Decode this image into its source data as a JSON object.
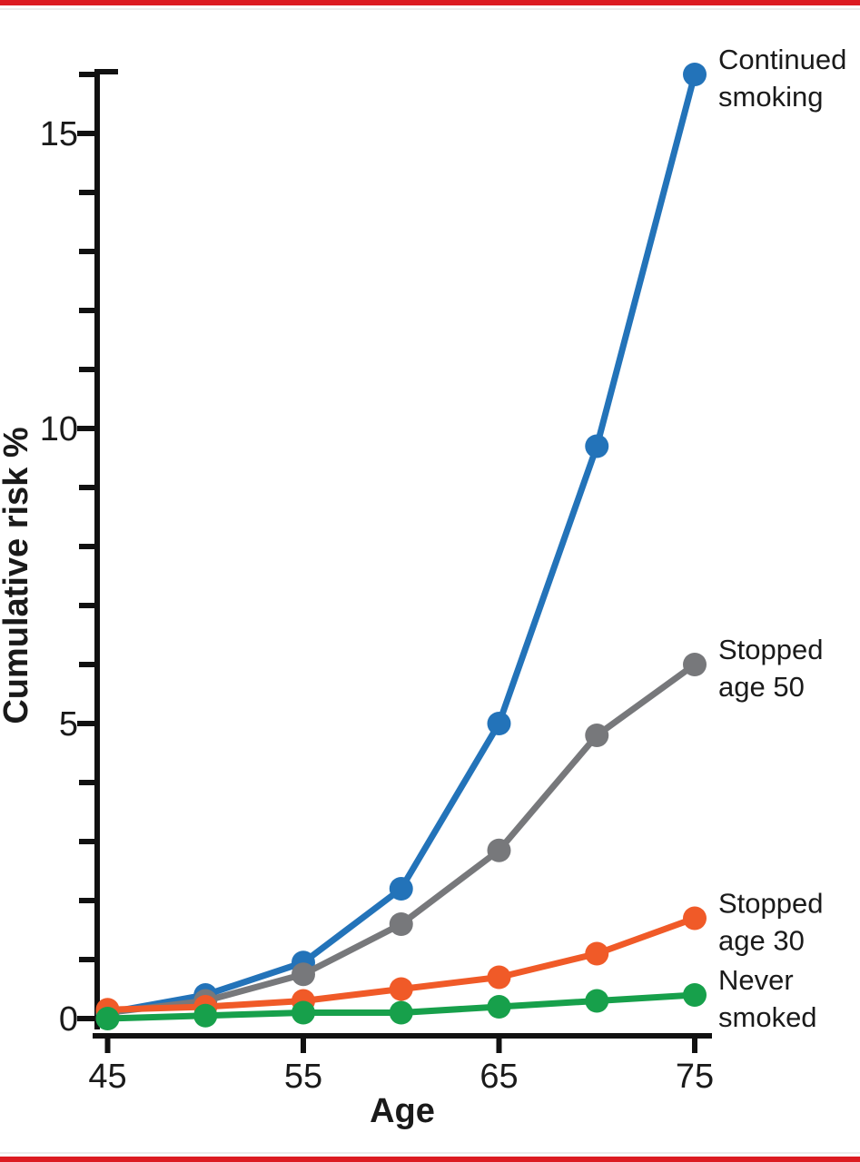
{
  "figure": {
    "border_color": "#DC1B21",
    "background_color": "#FFFFFF",
    "axis_color": "#111111",
    "text_color": "#1A1A1A"
  },
  "chart_data": {
    "type": "line",
    "title": "",
    "xlabel": "Age",
    "ylabel": "Cumulative risk %",
    "x": [
      45,
      50,
      55,
      60,
      65,
      70,
      75
    ],
    "x_ticks": [
      45,
      55,
      65,
      75
    ],
    "y_ticks": [
      0,
      5,
      10,
      15
    ],
    "y_minor_step": 1,
    "xlim": [
      45,
      75
    ],
    "ylim": [
      0,
      16.2
    ],
    "grid": false,
    "marker": "circle",
    "legend_position": "right-end-annotations",
    "series": [
      {
        "name": "Continued smoking",
        "label_lines": [
          "Continued",
          "smoking"
        ],
        "color": "#2373B9",
        "values": [
          0.1,
          0.4,
          0.95,
          2.2,
          5.0,
          9.7,
          16.0
        ]
      },
      {
        "name": "Stopped age 50",
        "label_lines": [
          "Stopped",
          "age 50"
        ],
        "color": "#77787B",
        "values": [
          0.1,
          0.3,
          0.75,
          1.6,
          2.85,
          4.8,
          6.0
        ]
      },
      {
        "name": "Stopped age 30",
        "label_lines": [
          "Stopped",
          "age 30"
        ],
        "color": "#F05A28",
        "values": [
          0.15,
          0.2,
          0.3,
          0.5,
          0.7,
          1.1,
          1.7
        ]
      },
      {
        "name": "Never smoked",
        "label_lines": [
          "Never",
          "smoked"
        ],
        "color": "#17A04B",
        "values": [
          0.0,
          0.05,
          0.1,
          0.1,
          0.2,
          0.3,
          0.4
        ]
      }
    ]
  }
}
